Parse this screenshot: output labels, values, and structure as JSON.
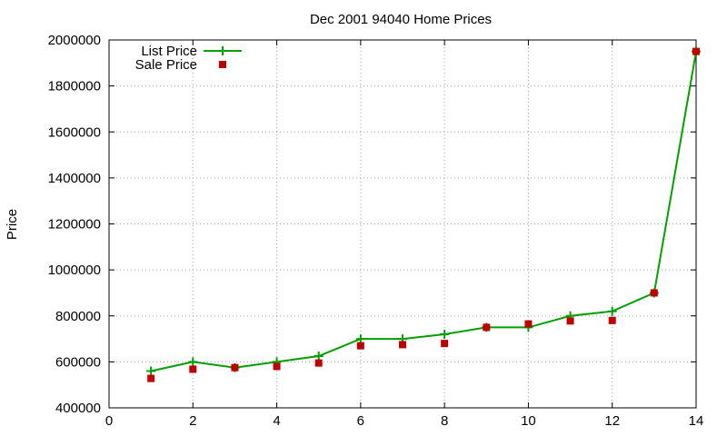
{
  "chart_data": {
    "type": "line",
    "title": "Dec 2001 94040 Home Prices",
    "xlabel": "",
    "ylabel": "Price",
    "xlim": [
      0,
      14
    ],
    "ylim": [
      400000,
      2000000
    ],
    "xticks": [
      0,
      2,
      4,
      6,
      8,
      10,
      12,
      14
    ],
    "yticks": [
      400000,
      600000,
      800000,
      1000000,
      1200000,
      1400000,
      1600000,
      1800000,
      2000000
    ],
    "grid": true,
    "legend_position": "top-left",
    "series": [
      {
        "name": "List Price",
        "style": "line-with-plus-markers",
        "color": "#00a000",
        "x": [
          1,
          2,
          3,
          4,
          5,
          6,
          7,
          8,
          9,
          10,
          11,
          12,
          13,
          14
        ],
        "y": [
          560000,
          600000,
          575000,
          600000,
          625000,
          700000,
          700000,
          720000,
          750000,
          750000,
          800000,
          820000,
          900000,
          1950000
        ]
      },
      {
        "name": "Sale Price",
        "style": "square-markers",
        "color": "#c00000",
        "x": [
          1,
          2,
          3,
          4,
          5,
          6,
          7,
          8,
          9,
          10,
          11,
          12,
          13,
          14
        ],
        "y": [
          528000,
          568000,
          575000,
          580000,
          595000,
          670000,
          675000,
          680000,
          750000,
          765000,
          778000,
          780000,
          900000,
          1950000
        ]
      }
    ]
  }
}
